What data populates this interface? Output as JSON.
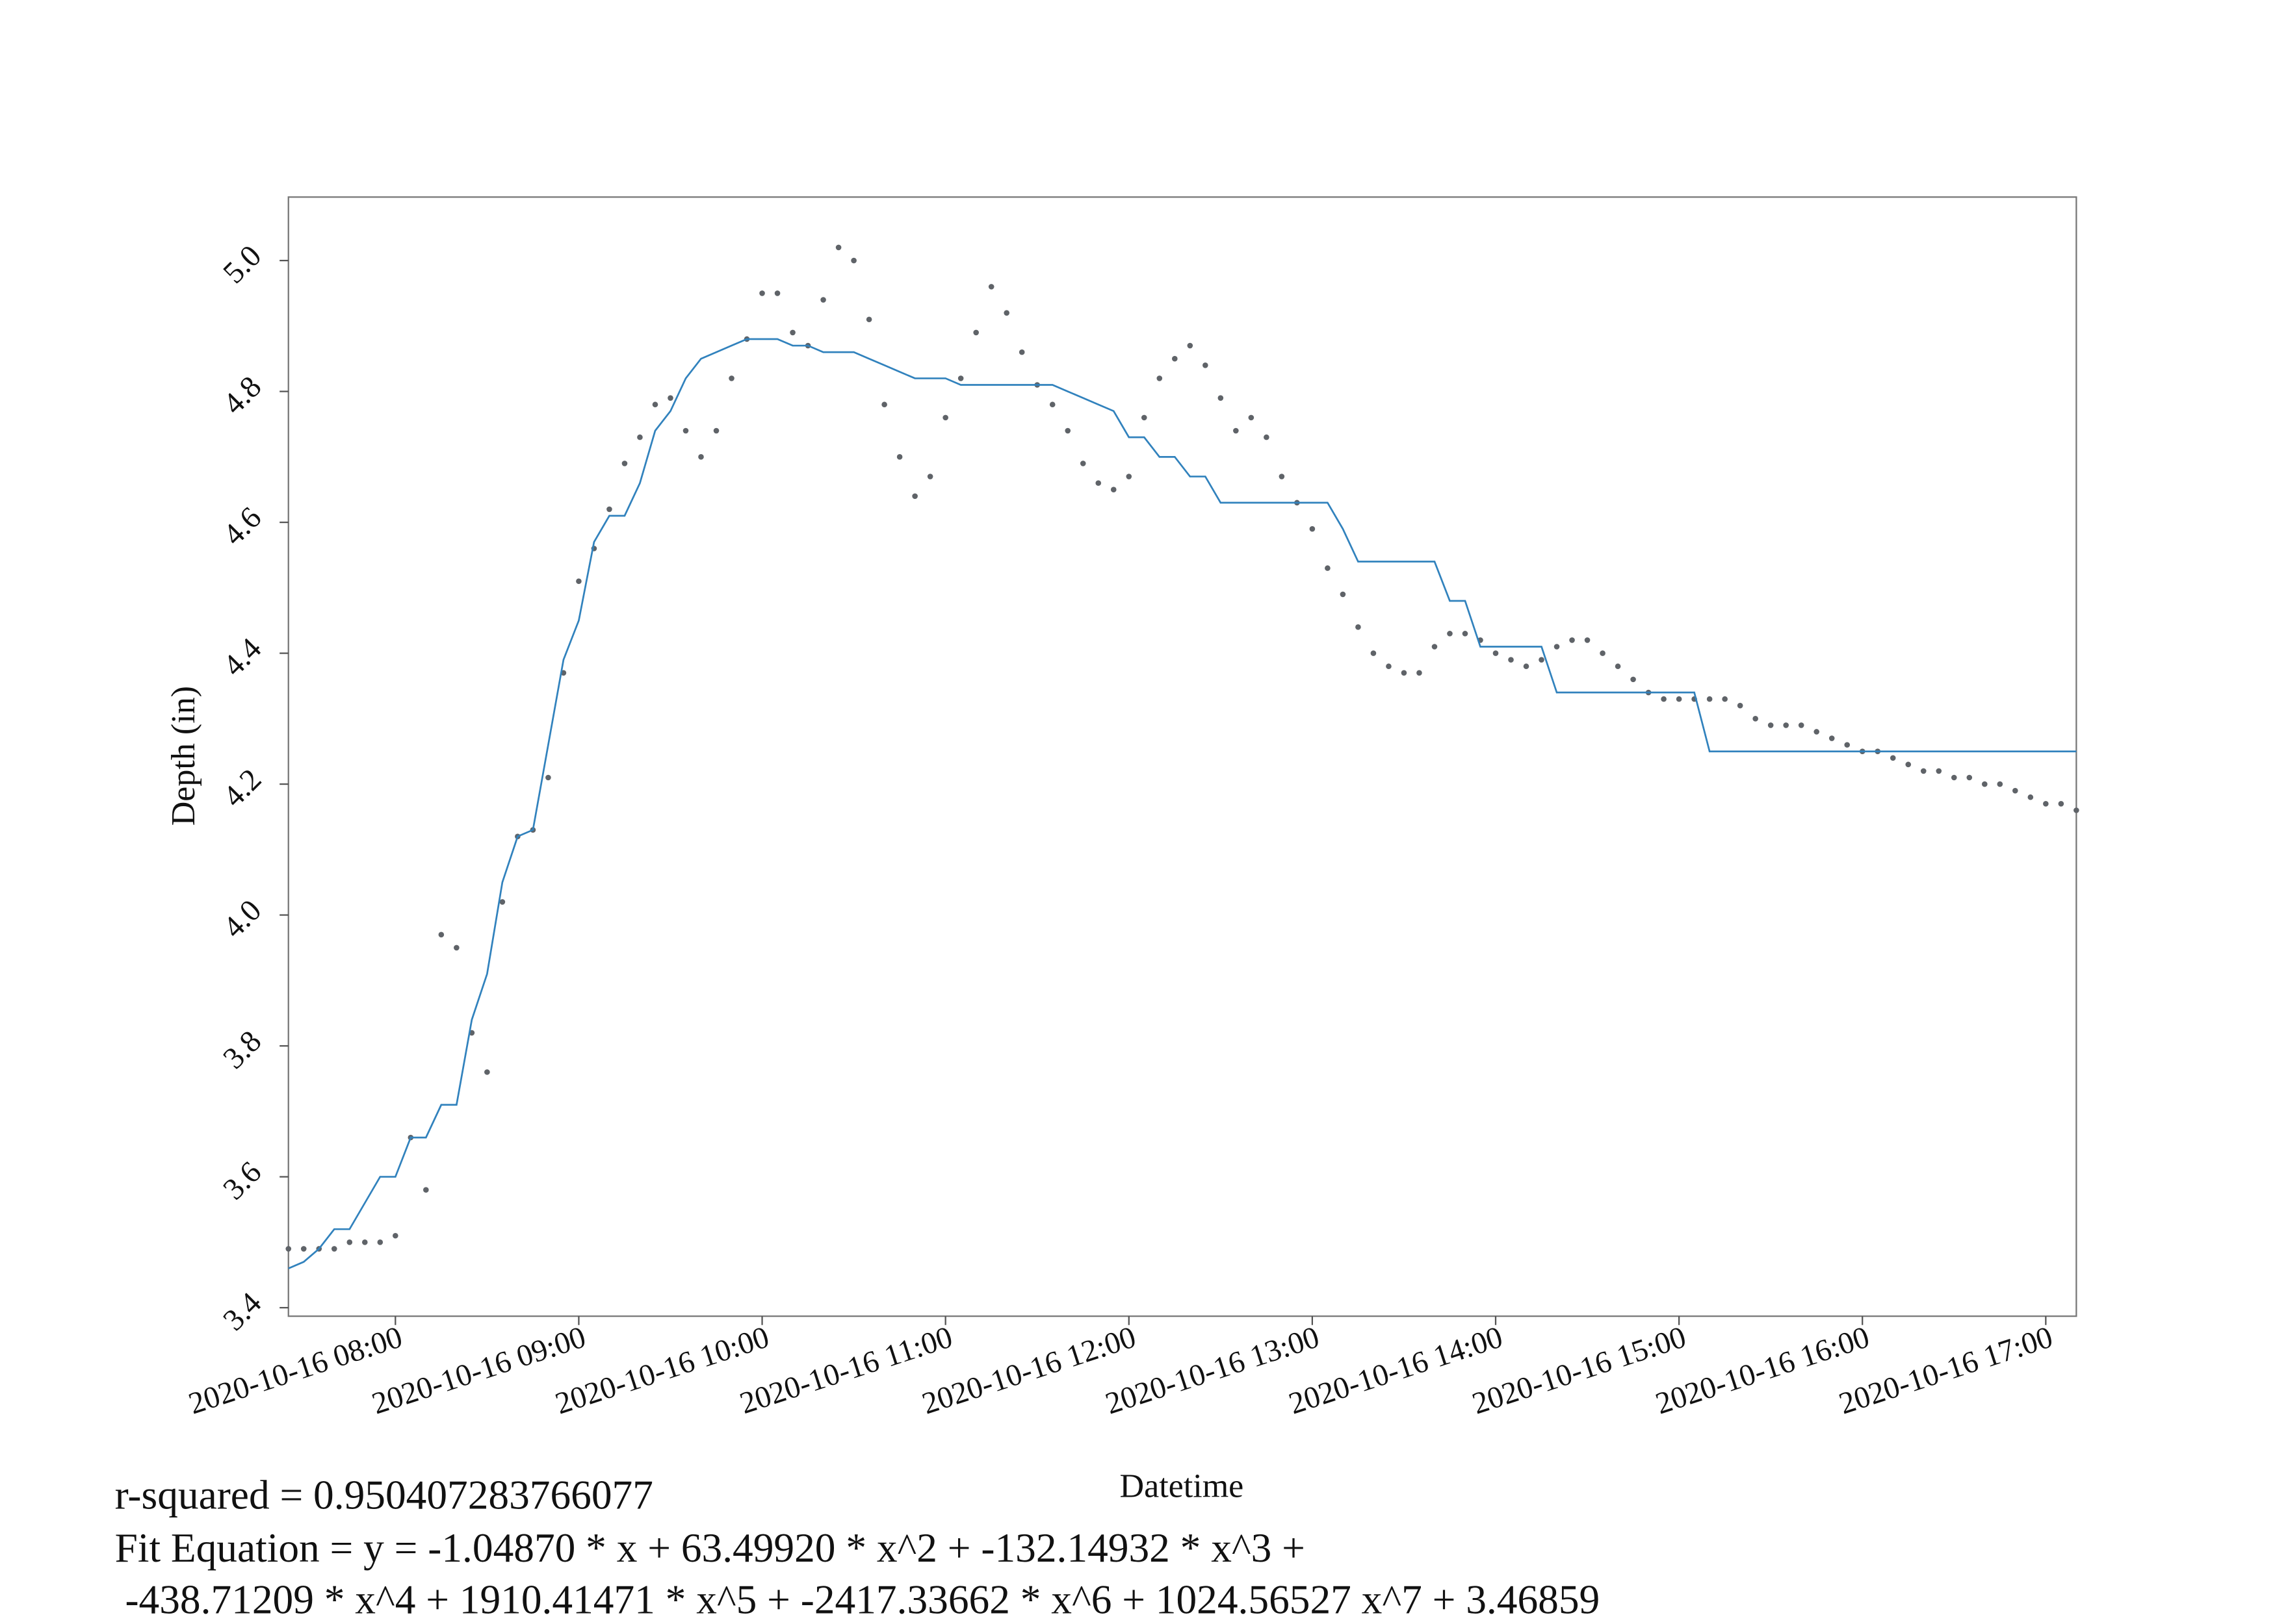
{
  "chart_data": {
    "type": "scatter",
    "x_label": "Datetime",
    "y_label": "Depth (in)",
    "annotations": [
      "r-squared = 0.950407283766077",
      "Fit Equation = y = -1.04870 * x + 63.49920 * x^2 + -132.14932 * x^3 +",
      " -438.71209 * x^4 + 1910.41471 * x^5 + -2417.33662 * x^6 + 1024.56527 x^7 + 3.46859"
    ],
    "x": [
      "2020-10-16 07:25",
      "2020-10-16 07:30",
      "2020-10-16 07:35",
      "2020-10-16 07:40",
      "2020-10-16 07:45",
      "2020-10-16 07:50",
      "2020-10-16 07:55",
      "2020-10-16 08:00",
      "2020-10-16 08:05",
      "2020-10-16 08:10",
      "2020-10-16 08:15",
      "2020-10-16 08:20",
      "2020-10-16 08:25",
      "2020-10-16 08:30",
      "2020-10-16 08:35",
      "2020-10-16 08:40",
      "2020-10-16 08:45",
      "2020-10-16 08:50",
      "2020-10-16 08:55",
      "2020-10-16 09:00",
      "2020-10-16 09:05",
      "2020-10-16 09:10",
      "2020-10-16 09:15",
      "2020-10-16 09:20",
      "2020-10-16 09:25",
      "2020-10-16 09:30",
      "2020-10-16 09:35",
      "2020-10-16 09:40",
      "2020-10-16 09:45",
      "2020-10-16 09:50",
      "2020-10-16 09:55",
      "2020-10-16 10:00",
      "2020-10-16 10:05",
      "2020-10-16 10:10",
      "2020-10-16 10:15",
      "2020-10-16 10:20",
      "2020-10-16 10:25",
      "2020-10-16 10:30",
      "2020-10-16 10:35",
      "2020-10-16 10:40",
      "2020-10-16 10:45",
      "2020-10-16 10:50",
      "2020-10-16 10:55",
      "2020-10-16 11:00",
      "2020-10-16 11:05",
      "2020-10-16 11:10",
      "2020-10-16 11:15",
      "2020-10-16 11:20",
      "2020-10-16 11:25",
      "2020-10-16 11:30",
      "2020-10-16 11:35",
      "2020-10-16 11:40",
      "2020-10-16 11:45",
      "2020-10-16 11:50",
      "2020-10-16 11:55",
      "2020-10-16 12:00",
      "2020-10-16 12:05",
      "2020-10-16 12:10",
      "2020-10-16 12:15",
      "2020-10-16 12:20",
      "2020-10-16 12:25",
      "2020-10-16 12:30",
      "2020-10-16 12:35",
      "2020-10-16 12:40",
      "2020-10-16 12:45",
      "2020-10-16 12:50",
      "2020-10-16 12:55",
      "2020-10-16 13:00",
      "2020-10-16 13:05",
      "2020-10-16 13:10",
      "2020-10-16 13:15",
      "2020-10-16 13:20",
      "2020-10-16 13:25",
      "2020-10-16 13:30",
      "2020-10-16 13:35",
      "2020-10-16 13:40",
      "2020-10-16 13:45",
      "2020-10-16 13:50",
      "2020-10-16 13:55",
      "2020-10-16 14:00",
      "2020-10-16 14:05",
      "2020-10-16 14:10",
      "2020-10-16 14:15",
      "2020-10-16 14:20",
      "2020-10-16 14:25",
      "2020-10-16 14:30",
      "2020-10-16 14:35",
      "2020-10-16 14:40",
      "2020-10-16 14:45",
      "2020-10-16 14:50",
      "2020-10-16 14:55",
      "2020-10-16 15:00",
      "2020-10-16 15:05",
      "2020-10-16 15:10",
      "2020-10-16 15:15",
      "2020-10-16 15:20",
      "2020-10-16 15:25",
      "2020-10-16 15:30",
      "2020-10-16 15:35",
      "2020-10-16 15:40",
      "2020-10-16 15:45",
      "2020-10-16 15:50",
      "2020-10-16 15:55",
      "2020-10-16 16:00",
      "2020-10-16 16:05",
      "2020-10-16 16:10",
      "2020-10-16 16:15",
      "2020-10-16 16:20",
      "2020-10-16 16:25",
      "2020-10-16 16:30",
      "2020-10-16 16:35",
      "2020-10-16 16:40",
      "2020-10-16 16:45",
      "2020-10-16 16:50",
      "2020-10-16 16:55",
      "2020-10-16 17:00",
      "2020-10-16 17:05",
      "2020-10-16 17:10"
    ],
    "series": [
      {
        "type": "scatter",
        "color": "#5f6368",
        "values": [
          3.49,
          3.49,
          3.49,
          3.49,
          3.5,
          3.5,
          3.5,
          3.51,
          3.66,
          3.58,
          3.97,
          3.95,
          3.82,
          3.76,
          4.02,
          4.12,
          4.13,
          4.21,
          4.37,
          4.51,
          4.56,
          4.62,
          4.69,
          4.73,
          4.78,
          4.79,
          4.74,
          4.7,
          4.74,
          4.82,
          4.88,
          4.95,
          4.95,
          4.89,
          4.87,
          4.94,
          5.02,
          5.0,
          4.91,
          4.78,
          4.7,
          4.64,
          4.67,
          4.76,
          4.82,
          4.89,
          4.96,
          4.92,
          4.86,
          4.81,
          4.78,
          4.74,
          4.69,
          4.66,
          4.65,
          4.67,
          4.76,
          4.82,
          4.85,
          4.87,
          4.84,
          4.79,
          4.74,
          4.76,
          4.73,
          4.67,
          4.63,
          4.59,
          4.53,
          4.49,
          4.44,
          4.4,
          4.38,
          4.37,
          4.37,
          4.41,
          4.43,
          4.43,
          4.42,
          4.4,
          4.39,
          4.38,
          4.39,
          4.41,
          4.42,
          4.42,
          4.4,
          4.38,
          4.36,
          4.34,
          4.33,
          4.33,
          4.33,
          4.33,
          4.33,
          4.32,
          4.3,
          4.29,
          4.29,
          4.29,
          4.28,
          4.27,
          4.26,
          4.25,
          4.25,
          4.24,
          4.23,
          4.22,
          4.22,
          4.21,
          4.21,
          4.2,
          4.2,
          4.19,
          4.18,
          4.17,
          4.17,
          4.16
        ]
      },
      {
        "type": "line",
        "color": "#3182bd",
        "values": [
          3.46,
          3.47,
          3.49,
          3.52,
          3.52,
          3.56,
          3.6,
          3.6,
          3.66,
          3.66,
          3.71,
          3.71,
          3.84,
          3.91,
          4.05,
          4.12,
          4.13,
          4.26,
          4.39,
          4.45,
          4.57,
          4.61,
          4.61,
          4.66,
          4.74,
          4.77,
          4.82,
          4.85,
          4.86,
          4.87,
          4.88,
          4.88,
          4.88,
          4.87,
          4.87,
          4.86,
          4.86,
          4.86,
          4.85,
          4.84,
          4.83,
          4.82,
          4.82,
          4.82,
          4.81,
          4.81,
          4.81,
          4.81,
          4.81,
          4.81,
          4.81,
          4.8,
          4.79,
          4.78,
          4.77,
          4.73,
          4.73,
          4.7,
          4.7,
          4.67,
          4.67,
          4.63,
          4.63,
          4.63,
          4.63,
          4.63,
          4.63,
          4.63,
          4.63,
          4.59,
          4.54,
          4.54,
          4.54,
          4.54,
          4.54,
          4.54,
          4.48,
          4.48,
          4.41,
          4.41,
          4.41,
          4.41,
          4.41,
          4.34,
          4.34,
          4.34,
          4.34,
          4.34,
          4.34,
          4.34,
          4.34,
          4.34,
          4.34,
          4.25,
          4.25,
          4.25,
          4.25,
          4.25,
          4.25,
          4.25,
          4.25,
          4.25,
          4.25,
          4.25,
          4.25,
          4.25,
          4.25,
          4.25,
          4.25,
          4.25,
          4.25,
          4.25,
          4.25,
          4.25,
          4.25,
          4.25,
          4.25,
          4.25
        ]
      }
    ],
    "xlim": [
      "2020-10-16 07:25",
      "2020-10-16 17:10"
    ],
    "xticks": [
      "2020-10-16 08:00",
      "2020-10-16 09:00",
      "2020-10-16 10:00",
      "2020-10-16 11:00",
      "2020-10-16 12:00",
      "2020-10-16 13:00",
      "2020-10-16 14:00",
      "2020-10-16 15:00",
      "2020-10-16 16:00",
      "2020-10-16 17:00"
    ],
    "ylim": [
      3.387,
      5.097
    ],
    "yticks": [
      3.4,
      3.6,
      3.8,
      {
        "value": 4,
        "label": "4.0"
      },
      4.2,
      4.4,
      4.6,
      4.8,
      {
        "value": 5,
        "label": "5.0"
      }
    ],
    "grid": false
  }
}
